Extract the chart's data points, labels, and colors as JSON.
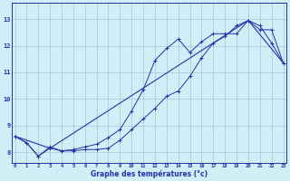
{
  "xlabel": "Graphe des températures (°c)",
  "bg_color": "#d0eef5",
  "line_color": "#2233aa",
  "grid_color": "#a0c8d8",
  "x_ticks": [
    0,
    1,
    2,
    3,
    4,
    5,
    6,
    7,
    8,
    9,
    10,
    11,
    12,
    13,
    14,
    15,
    16,
    17,
    18,
    19,
    20,
    21,
    22,
    23
  ],
  "y_ticks": [
    8,
    9,
    10,
    11,
    12,
    13
  ],
  "ylim": [
    7.6,
    13.6
  ],
  "xlim": [
    -0.3,
    23.3
  ],
  "curve1_x": [
    0,
    1,
    2,
    3,
    4,
    5,
    6,
    7,
    8,
    9,
    10,
    11,
    12,
    13,
    14,
    15,
    16,
    17,
    18,
    19,
    20,
    21,
    22,
    23
  ],
  "curve1_y": [
    8.6,
    8.35,
    7.85,
    8.15,
    8.05,
    8.05,
    8.1,
    8.1,
    8.15,
    8.45,
    8.85,
    9.25,
    9.65,
    10.1,
    10.3,
    10.85,
    11.55,
    12.1,
    12.35,
    12.75,
    12.95,
    12.75,
    12.1,
    11.35
  ],
  "curve2_x": [
    0,
    1,
    2,
    3,
    4,
    5,
    6,
    7,
    8,
    9,
    10,
    11,
    12,
    13,
    14,
    15,
    16,
    17,
    18,
    19,
    20,
    21,
    22,
    23
  ],
  "curve2_y": [
    8.6,
    8.35,
    7.85,
    8.2,
    8.05,
    8.1,
    8.2,
    8.3,
    8.55,
    8.85,
    9.55,
    10.35,
    11.45,
    11.9,
    12.25,
    11.75,
    12.15,
    12.45,
    12.45,
    12.45,
    12.95,
    12.6,
    12.6,
    11.35
  ],
  "curve3_x": [
    0,
    3,
    20,
    23
  ],
  "curve3_y": [
    8.6,
    8.15,
    12.95,
    11.35
  ]
}
